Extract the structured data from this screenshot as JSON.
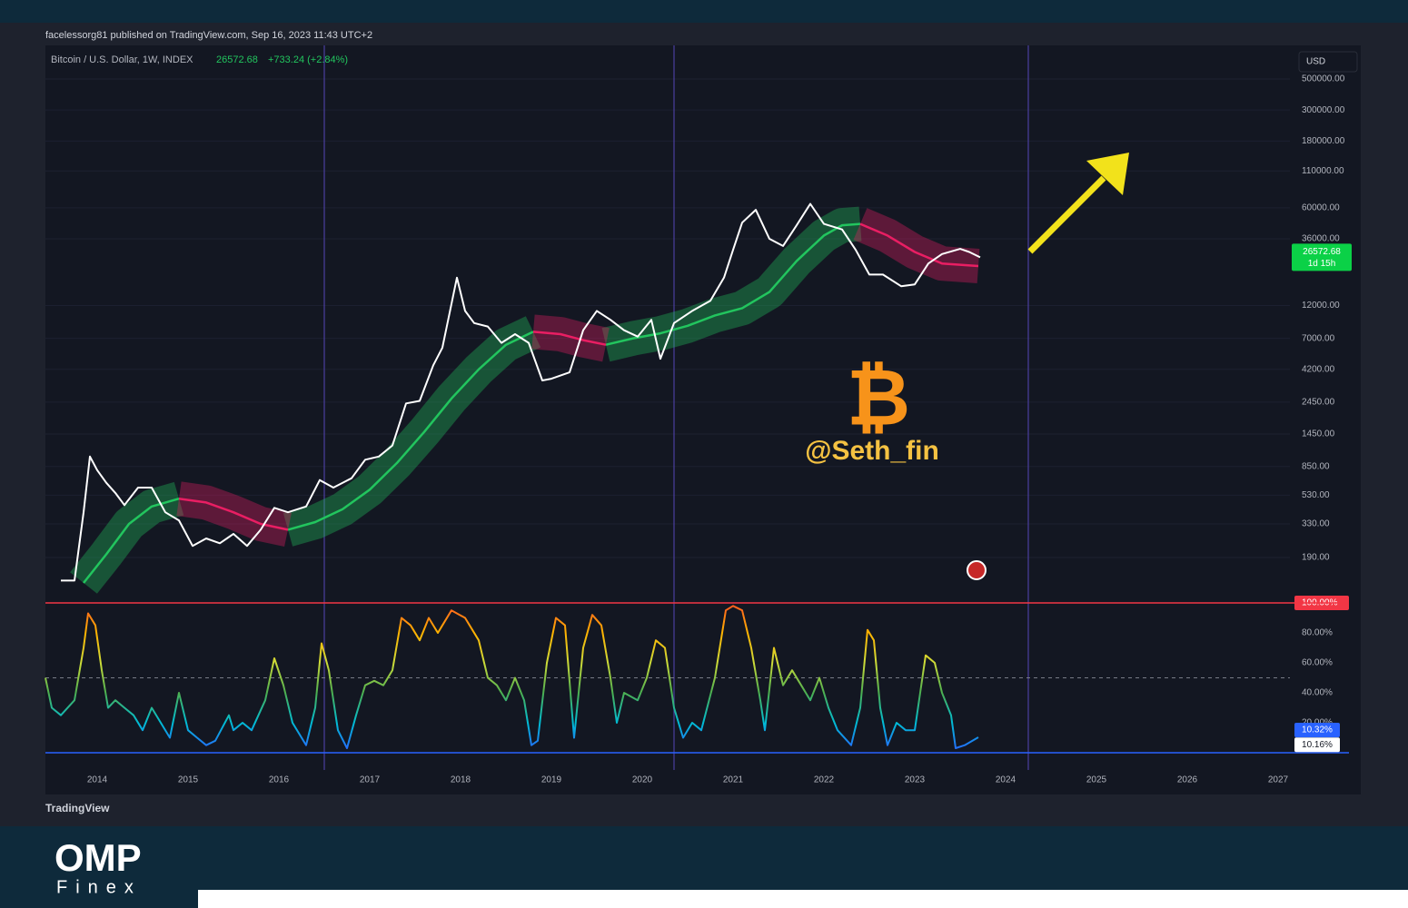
{
  "header": {
    "publisher": "facelessorg81 published on TradingView.com, Sep 16, 2023 11:43 UTC+2",
    "symbol": "Bitcoin / U.S. Dollar, 1W, INDEX",
    "last": "26572.68",
    "change": "+733.24 (+2.84%)",
    "currency": "USD"
  },
  "watermark": {
    "symbol": "₿",
    "handle": "@Seth_fin"
  },
  "footer": {
    "brand": "TradingView",
    "logo": "OMP",
    "sub": "Finex"
  },
  "chart_data": [
    {
      "type": "line",
      "log_scale": true,
      "xlim": [
        2013.43,
        2027.13
      ],
      "ylim": [
        125,
        843000
      ],
      "yticks": [
        {
          "value": 190,
          "label": "190.00"
        },
        {
          "value": 330,
          "label": "330.00"
        },
        {
          "value": 530,
          "label": "530.00"
        },
        {
          "value": 850,
          "label": "850.00"
        },
        {
          "value": 1450,
          "label": "1450.00"
        },
        {
          "value": 2450,
          "label": "2450.00"
        },
        {
          "value": 4200,
          "label": "4200.00"
        },
        {
          "value": 7000,
          "label": "7000.00"
        },
        {
          "value": 12000,
          "label": "12000.00"
        },
        {
          "value": 36000,
          "label": "36000.00"
        },
        {
          "value": 60000,
          "label": "60000.00"
        },
        {
          "value": 110000,
          "label": "110000.00"
        },
        {
          "value": 180000,
          "label": "180000.00"
        },
        {
          "value": 300000,
          "label": "300000.00"
        },
        {
          "value": 500000,
          "label": "500000.00"
        }
      ],
      "grid": true,
      "vlines": [
        2016.5,
        2020.35,
        2024.25
      ],
      "series": [
        {
          "style": "ribbon",
          "color": "#22c55e",
          "x": [
            2013.85,
            2014.1,
            2014.35,
            2014.6,
            2014.9,
            2015.2,
            2015.5,
            2015.8,
            2016.1,
            2016.4,
            2016.7,
            2017.0,
            2017.3,
            2017.6,
            2017.9,
            2018.2,
            2018.5,
            2018.8,
            2019.1,
            2019.35,
            2019.6,
            2019.9,
            2020.2,
            2020.5,
            2020.8,
            2021.1,
            2021.4,
            2021.7,
            2022.0,
            2022.2,
            2022.4,
            2022.7,
            2023.0,
            2023.3,
            2023.7
          ],
          "values": [
            125,
            200,
            330,
            440,
            500,
            null,
            null,
            null,
            300,
            340,
            420,
            580,
            900,
            1500,
            2600,
            4200,
            6300,
            7800,
            null,
            null,
            6300,
            7000,
            7600,
            8600,
            10200,
            11500,
            15000,
            25000,
            38000,
            45000,
            46000,
            null,
            null,
            null,
            null
          ]
        },
        {
          "style": "ribbon",
          "color": "#e91e63",
          "x": [
            2013.85,
            2014.1,
            2014.35,
            2014.6,
            2014.9,
            2015.2,
            2015.5,
            2015.8,
            2016.1,
            2016.4,
            2016.7,
            2017.0,
            2017.3,
            2017.6,
            2017.9,
            2018.2,
            2018.5,
            2018.8,
            2019.1,
            2019.35,
            2019.6,
            2019.9,
            2020.2,
            2020.5,
            2020.8,
            2021.1,
            2021.4,
            2021.7,
            2022.0,
            2022.2,
            2022.4,
            2022.7,
            2023.0,
            2023.3,
            2023.7
          ],
          "values": [
            null,
            null,
            null,
            null,
            500,
            470,
            400,
            330,
            300,
            null,
            null,
            null,
            null,
            null,
            null,
            null,
            null,
            7800,
            7500,
            6800,
            6300,
            null,
            null,
            null,
            null,
            null,
            null,
            null,
            null,
            null,
            46000,
            38000,
            29000,
            24000,
            23000
          ]
        },
        {
          "style": "line",
          "color": "#ffffff",
          "x": [
            2013.6,
            2013.75,
            2013.85,
            2013.92,
            2014.0,
            2014.1,
            2014.2,
            2014.3,
            2014.45,
            2014.6,
            2014.75,
            2014.9,
            2015.05,
            2015.2,
            2015.35,
            2015.5,
            2015.65,
            2015.8,
            2015.95,
            2016.1,
            2016.3,
            2016.45,
            2016.6,
            2016.8,
            2016.95,
            2017.1,
            2017.25,
            2017.4,
            2017.55,
            2017.7,
            2017.8,
            2017.96,
            2018.05,
            2018.15,
            2018.3,
            2018.45,
            2018.6,
            2018.75,
            2018.9,
            2019.0,
            2019.2,
            2019.35,
            2019.5,
            2019.65,
            2019.8,
            2019.95,
            2020.1,
            2020.2,
            2020.35,
            2020.55,
            2020.75,
            2020.9,
            2021.0,
            2021.1,
            2021.25,
            2021.4,
            2021.55,
            2021.7,
            2021.85,
            2022.0,
            2022.2,
            2022.35,
            2022.5,
            2022.65,
            2022.85,
            2023.0,
            2023.15,
            2023.3,
            2023.5,
            2023.6,
            2023.72
          ],
          "values": [
            130,
            130,
            400,
            1000,
            800,
            650,
            550,
            450,
            600,
            600,
            400,
            350,
            230,
            260,
            240,
            280,
            230,
            300,
            430,
            400,
            440,
            680,
            600,
            700,
            950,
            1000,
            1200,
            2400,
            2500,
            4500,
            6000,
            19000,
            11000,
            9000,
            8500,
            6500,
            7500,
            6500,
            3500,
            3600,
            4000,
            8000,
            11000,
            9500,
            8000,
            7200,
            9500,
            5000,
            9000,
            11000,
            13000,
            19000,
            30000,
            47000,
            58000,
            36000,
            32000,
            45000,
            64000,
            46000,
            42000,
            30000,
            20000,
            20000,
            16500,
            17000,
            24000,
            28000,
            30500,
            29000,
            26572.68
          ]
        }
      ],
      "price_label": {
        "value": 26572.68,
        "label": "26572.68",
        "countdown": "1d 15h",
        "color": "#0bd147"
      }
    },
    {
      "type": "line",
      "xlim": [
        2013.43,
        2027.13
      ],
      "ylim": [
        -9.7,
        111.5
      ],
      "xticks": [
        2014,
        2015,
        2016,
        2017,
        2018,
        2019,
        2020,
        2021,
        2022,
        2023,
        2024,
        2025,
        2026,
        2027
      ],
      "yticks": [
        {
          "value": 100,
          "label": "100.00%"
        },
        {
          "value": 80,
          "label": "80.00%"
        },
        {
          "value": 60,
          "label": "60.00%"
        },
        {
          "value": 40,
          "label": "40.00%"
        },
        {
          "value": 20,
          "label": "20.00%"
        }
      ],
      "hlines": [
        {
          "value": 100,
          "color": "#f23645"
        },
        {
          "value": 50,
          "color": "#787b86",
          "dash": true
        },
        {
          "value": 0,
          "color": "#2962ff"
        }
      ],
      "colorscale": [
        "#2962ff",
        "#00bcd4",
        "#4caf50",
        "#cddc39",
        "#ffb300",
        "#ff5722"
      ],
      "series": [
        {
          "x": [
            2013.43,
            2013.5,
            2013.6,
            2013.75,
            2013.85,
            2013.9,
            2013.98,
            2014.05,
            2014.12,
            2014.2,
            2014.3,
            2014.4,
            2014.5,
            2014.6,
            2014.7,
            2014.8,
            2014.9,
            2015.0,
            2015.1,
            2015.2,
            2015.3,
            2015.45,
            2015.5,
            2015.6,
            2015.7,
            2015.85,
            2015.95,
            2016.05,
            2016.15,
            2016.3,
            2016.4,
            2016.47,
            2016.55,
            2016.65,
            2016.75,
            2016.85,
            2016.95,
            2017.05,
            2017.15,
            2017.25,
            2017.35,
            2017.45,
            2017.55,
            2017.65,
            2017.75,
            2017.9,
            2018.05,
            2018.2,
            2018.3,
            2018.4,
            2018.5,
            2018.6,
            2018.7,
            2018.78,
            2018.85,
            2018.95,
            2019.05,
            2019.15,
            2019.25,
            2019.35,
            2019.45,
            2019.55,
            2019.65,
            2019.72,
            2019.8,
            2019.95,
            2020.05,
            2020.15,
            2020.25,
            2020.35,
            2020.45,
            2020.55,
            2020.65,
            2020.8,
            2020.92,
            2021.0,
            2021.1,
            2021.2,
            2021.3,
            2021.35,
            2021.45,
            2021.55,
            2021.65,
            2021.75,
            2021.85,
            2021.95,
            2022.05,
            2022.15,
            2022.3,
            2022.4,
            2022.48,
            2022.55,
            2022.62,
            2022.7,
            2022.8,
            2022.9,
            2023.0,
            2023.12,
            2023.22,
            2023.3,
            2023.4,
            2023.45,
            2023.55,
            2023.7
          ],
          "values": [
            50,
            30,
            25,
            35,
            70,
            93,
            85,
            55,
            30,
            35,
            30,
            25,
            15,
            30,
            20,
            10,
            40,
            15,
            10,
            5,
            8,
            25,
            15,
            20,
            15,
            35,
            63,
            45,
            20,
            5,
            30,
            73,
            55,
            15,
            3,
            25,
            45,
            48,
            45,
            55,
            90,
            85,
            75,
            90,
            80,
            95,
            90,
            75,
            50,
            45,
            35,
            50,
            35,
            5,
            8,
            60,
            90,
            85,
            10,
            70,
            92,
            85,
            50,
            20,
            40,
            35,
            50,
            75,
            70,
            30,
            10,
            20,
            15,
            50,
            95,
            98,
            95,
            70,
            35,
            15,
            70,
            45,
            55,
            45,
            35,
            50,
            30,
            15,
            5,
            30,
            82,
            75,
            30,
            5,
            20,
            15,
            15,
            65,
            60,
            40,
            25,
            3,
            5,
            10.32
          ]
        }
      ],
      "last_labels": [
        {
          "value": 10.32,
          "label": "10.32%",
          "color": "#2962ff"
        },
        {
          "value": 10.16,
          "label": "10.16%",
          "color": "#ffffff"
        }
      ]
    }
  ]
}
